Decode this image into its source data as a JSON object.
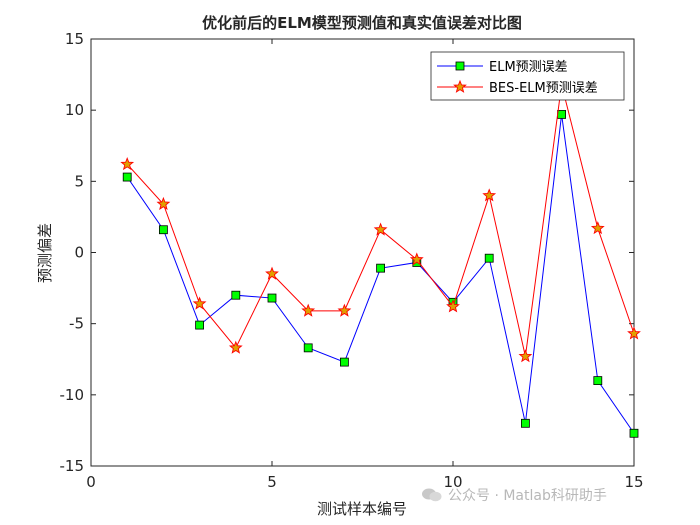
{
  "chart_data": {
    "type": "line",
    "title": "优化前后的ELM模型预测值和真实值误差对比图",
    "xlabel": "测试样本编号",
    "ylabel": "预测偏差",
    "xlim": [
      0,
      15
    ],
    "ylim": [
      -15,
      15
    ],
    "xticks": [
      0,
      5,
      10,
      15
    ],
    "yticks": [
      -15,
      -10,
      -5,
      0,
      5,
      10,
      15
    ],
    "legend_position": "top-right",
    "x": [
      1,
      2,
      3,
      4,
      5,
      6,
      7,
      8,
      9,
      10,
      11,
      12,
      13,
      14,
      15
    ],
    "series": [
      {
        "name": "ELM预测误差",
        "color": "#0000ff",
        "marker": "square",
        "marker_fill": "#00ff00",
        "values": [
          5.3,
          1.6,
          -5.1,
          -3.0,
          -3.2,
          -6.7,
          -7.7,
          -1.1,
          -0.7,
          -3.5,
          -0.4,
          -12.0,
          9.7,
          -9.0,
          -12.7
        ]
      },
      {
        "name": "BES-ELM预测误差",
        "color": "#ff0000",
        "marker": "star",
        "marker_fill": "#e0a000",
        "values": [
          6.2,
          3.4,
          -3.6,
          -6.7,
          -1.5,
          -4.1,
          -4.1,
          1.6,
          -0.5,
          -3.8,
          4.0,
          -7.3,
          11.8,
          1.7,
          -5.7
        ]
      }
    ]
  },
  "watermark": {
    "text": "公众号 · Matlab科研助手",
    "icon": "wechat-icon"
  }
}
